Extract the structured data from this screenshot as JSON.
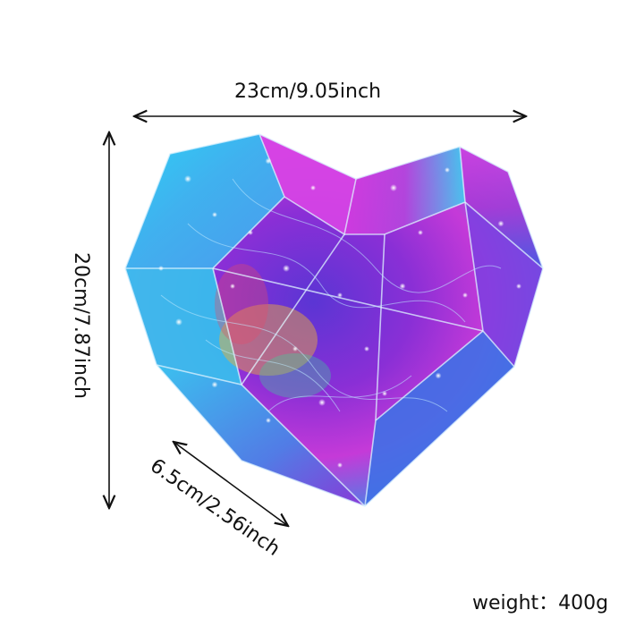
{
  "product": {
    "name": "heart-shaped iridescent fairy light box",
    "colors": {
      "cyan": "#2ec6f0",
      "magenta": "#d63be0",
      "purple": "#7a36d8",
      "blue": "#3a63e6",
      "gold": "#f2b233",
      "green": "#38d49a",
      "background": "#ffffff"
    }
  },
  "dimensions": {
    "width_label": "23cm/9.05inch",
    "height_label": "20cm/7.87inch",
    "depth_label": "6.5cm/2.56inch",
    "weight_label": "weight：400g"
  }
}
